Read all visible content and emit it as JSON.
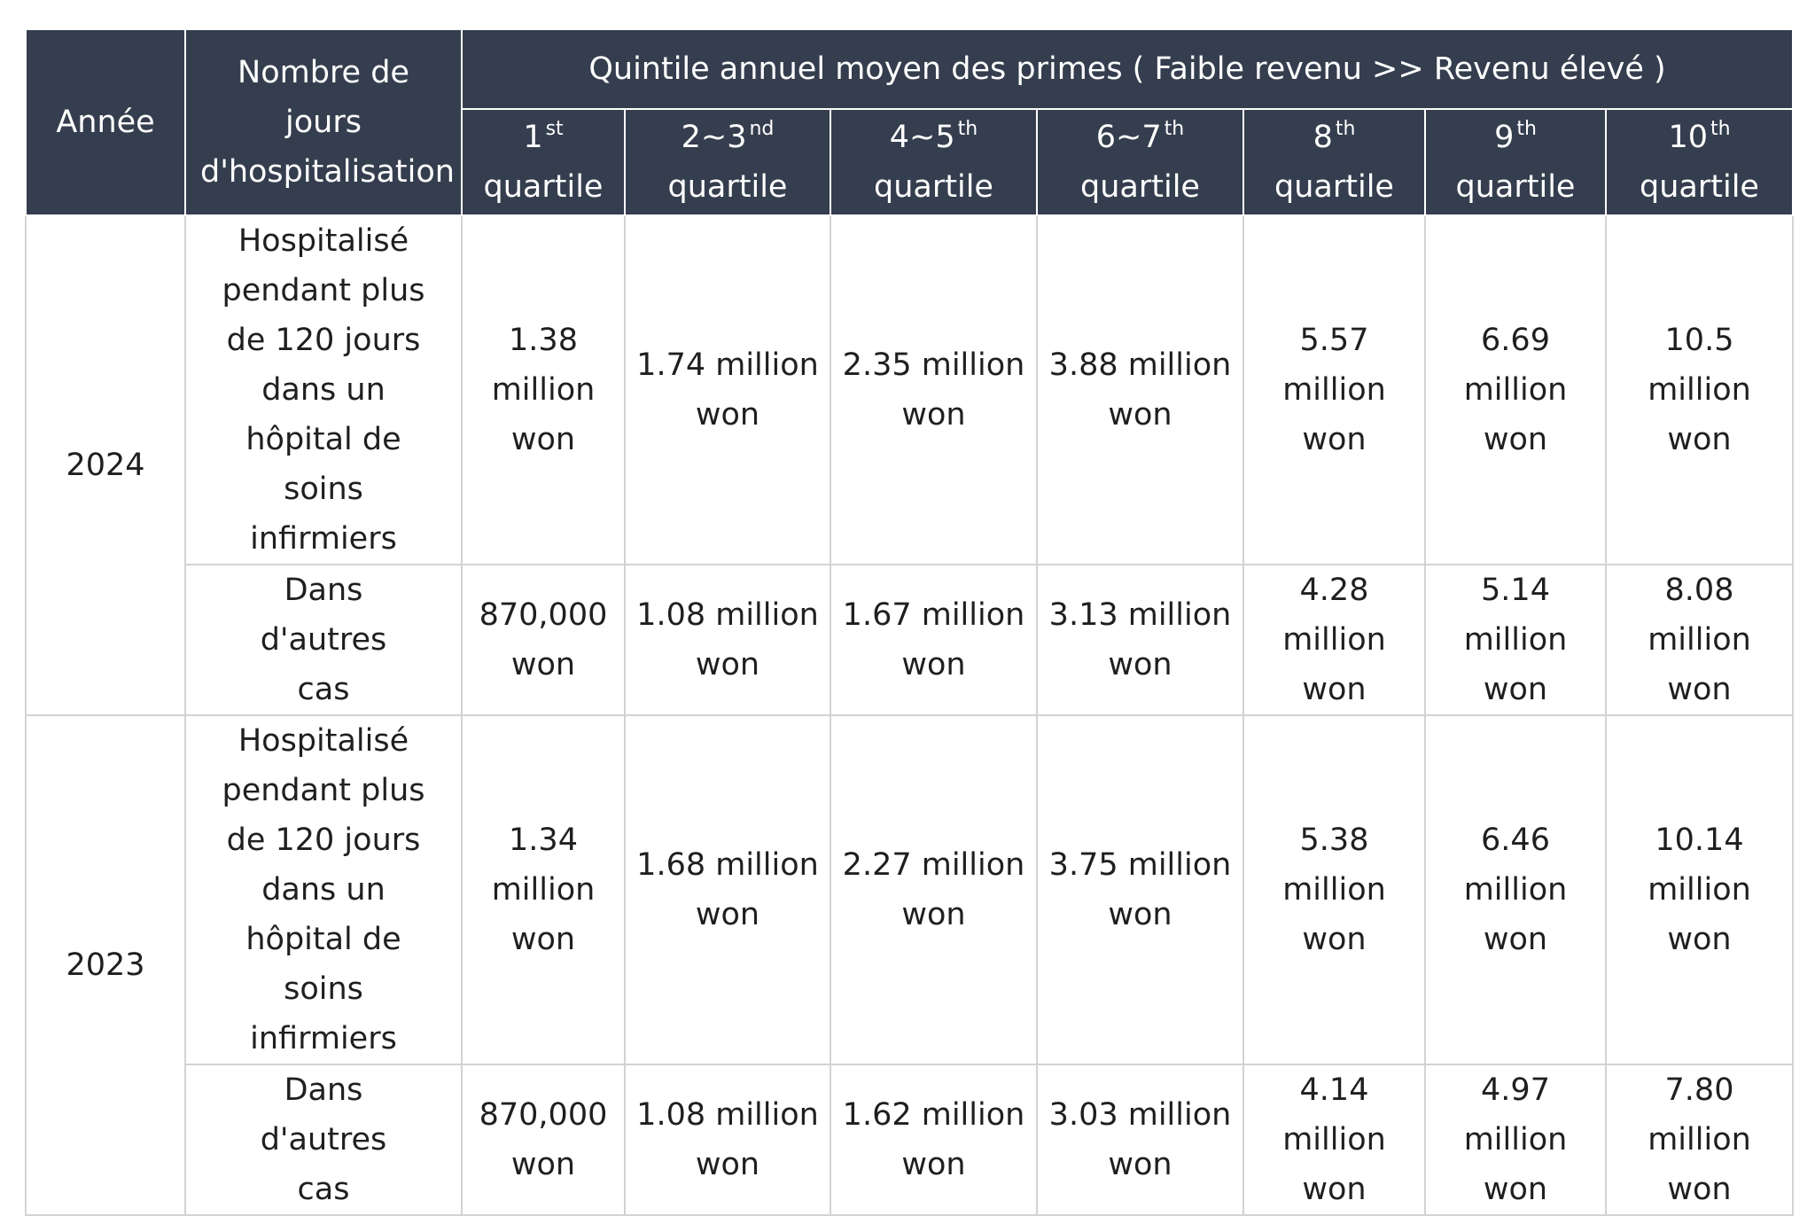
{
  "header": {
    "year": "Année",
    "days": "Nombre de jours d'hospitalisation",
    "group": "Quintile annuel moyen des primes ( Faible revenu >> Revenu élevé )",
    "quartiles": [
      {
        "num": "1",
        "sup": "st",
        "word": "quartile"
      },
      {
        "num": "2~3",
        "sup": "nd",
        "word": "quartile"
      },
      {
        "num": "4~5",
        "sup": "th",
        "word": "quartile"
      },
      {
        "num": "6~7",
        "sup": "th",
        "word": "quartile"
      },
      {
        "num": "8",
        "sup": "th",
        "word": "quartile"
      },
      {
        "num": "9",
        "sup": "th",
        "word": "quartile"
      },
      {
        "num": "10",
        "sup": "th",
        "word": "quartile"
      }
    ]
  },
  "rows": [
    {
      "year": "2024",
      "days": "Hospitalisé pendant plus de 120 jours dans un hôpital de soins infirmiers",
      "values": [
        "1.38 million won",
        "1.74 million won",
        "2.35 million won",
        "3.88 million won",
        "5.57 million won",
        "6.69 million won",
        "10.5 million won"
      ]
    },
    {
      "year": "2024",
      "days": "Dans d'autres cas",
      "values": [
        "870,000 won",
        "1.08 million won",
        "1.67 million won",
        "3.13 million won",
        "4.28 million won",
        "5.14 million won",
        "8.08 million won"
      ]
    },
    {
      "year": "2023",
      "days": "Hospitalisé pendant plus de 120 jours dans un hôpital de soins infirmiers",
      "values": [
        "1.34 million won",
        "1.68 million won",
        "2.27 million won",
        "3.75 million won",
        "5.38 million won",
        "6.46 million won",
        "10.14 million won"
      ]
    },
    {
      "year": "2023",
      "days": "Dans d'autres cas",
      "values": [
        "870,000 won",
        "1.08 million won",
        "1.62 million won",
        "3.03 million won",
        "4.14 million won",
        "4.97 million won",
        "7.80 million won"
      ]
    }
  ]
}
